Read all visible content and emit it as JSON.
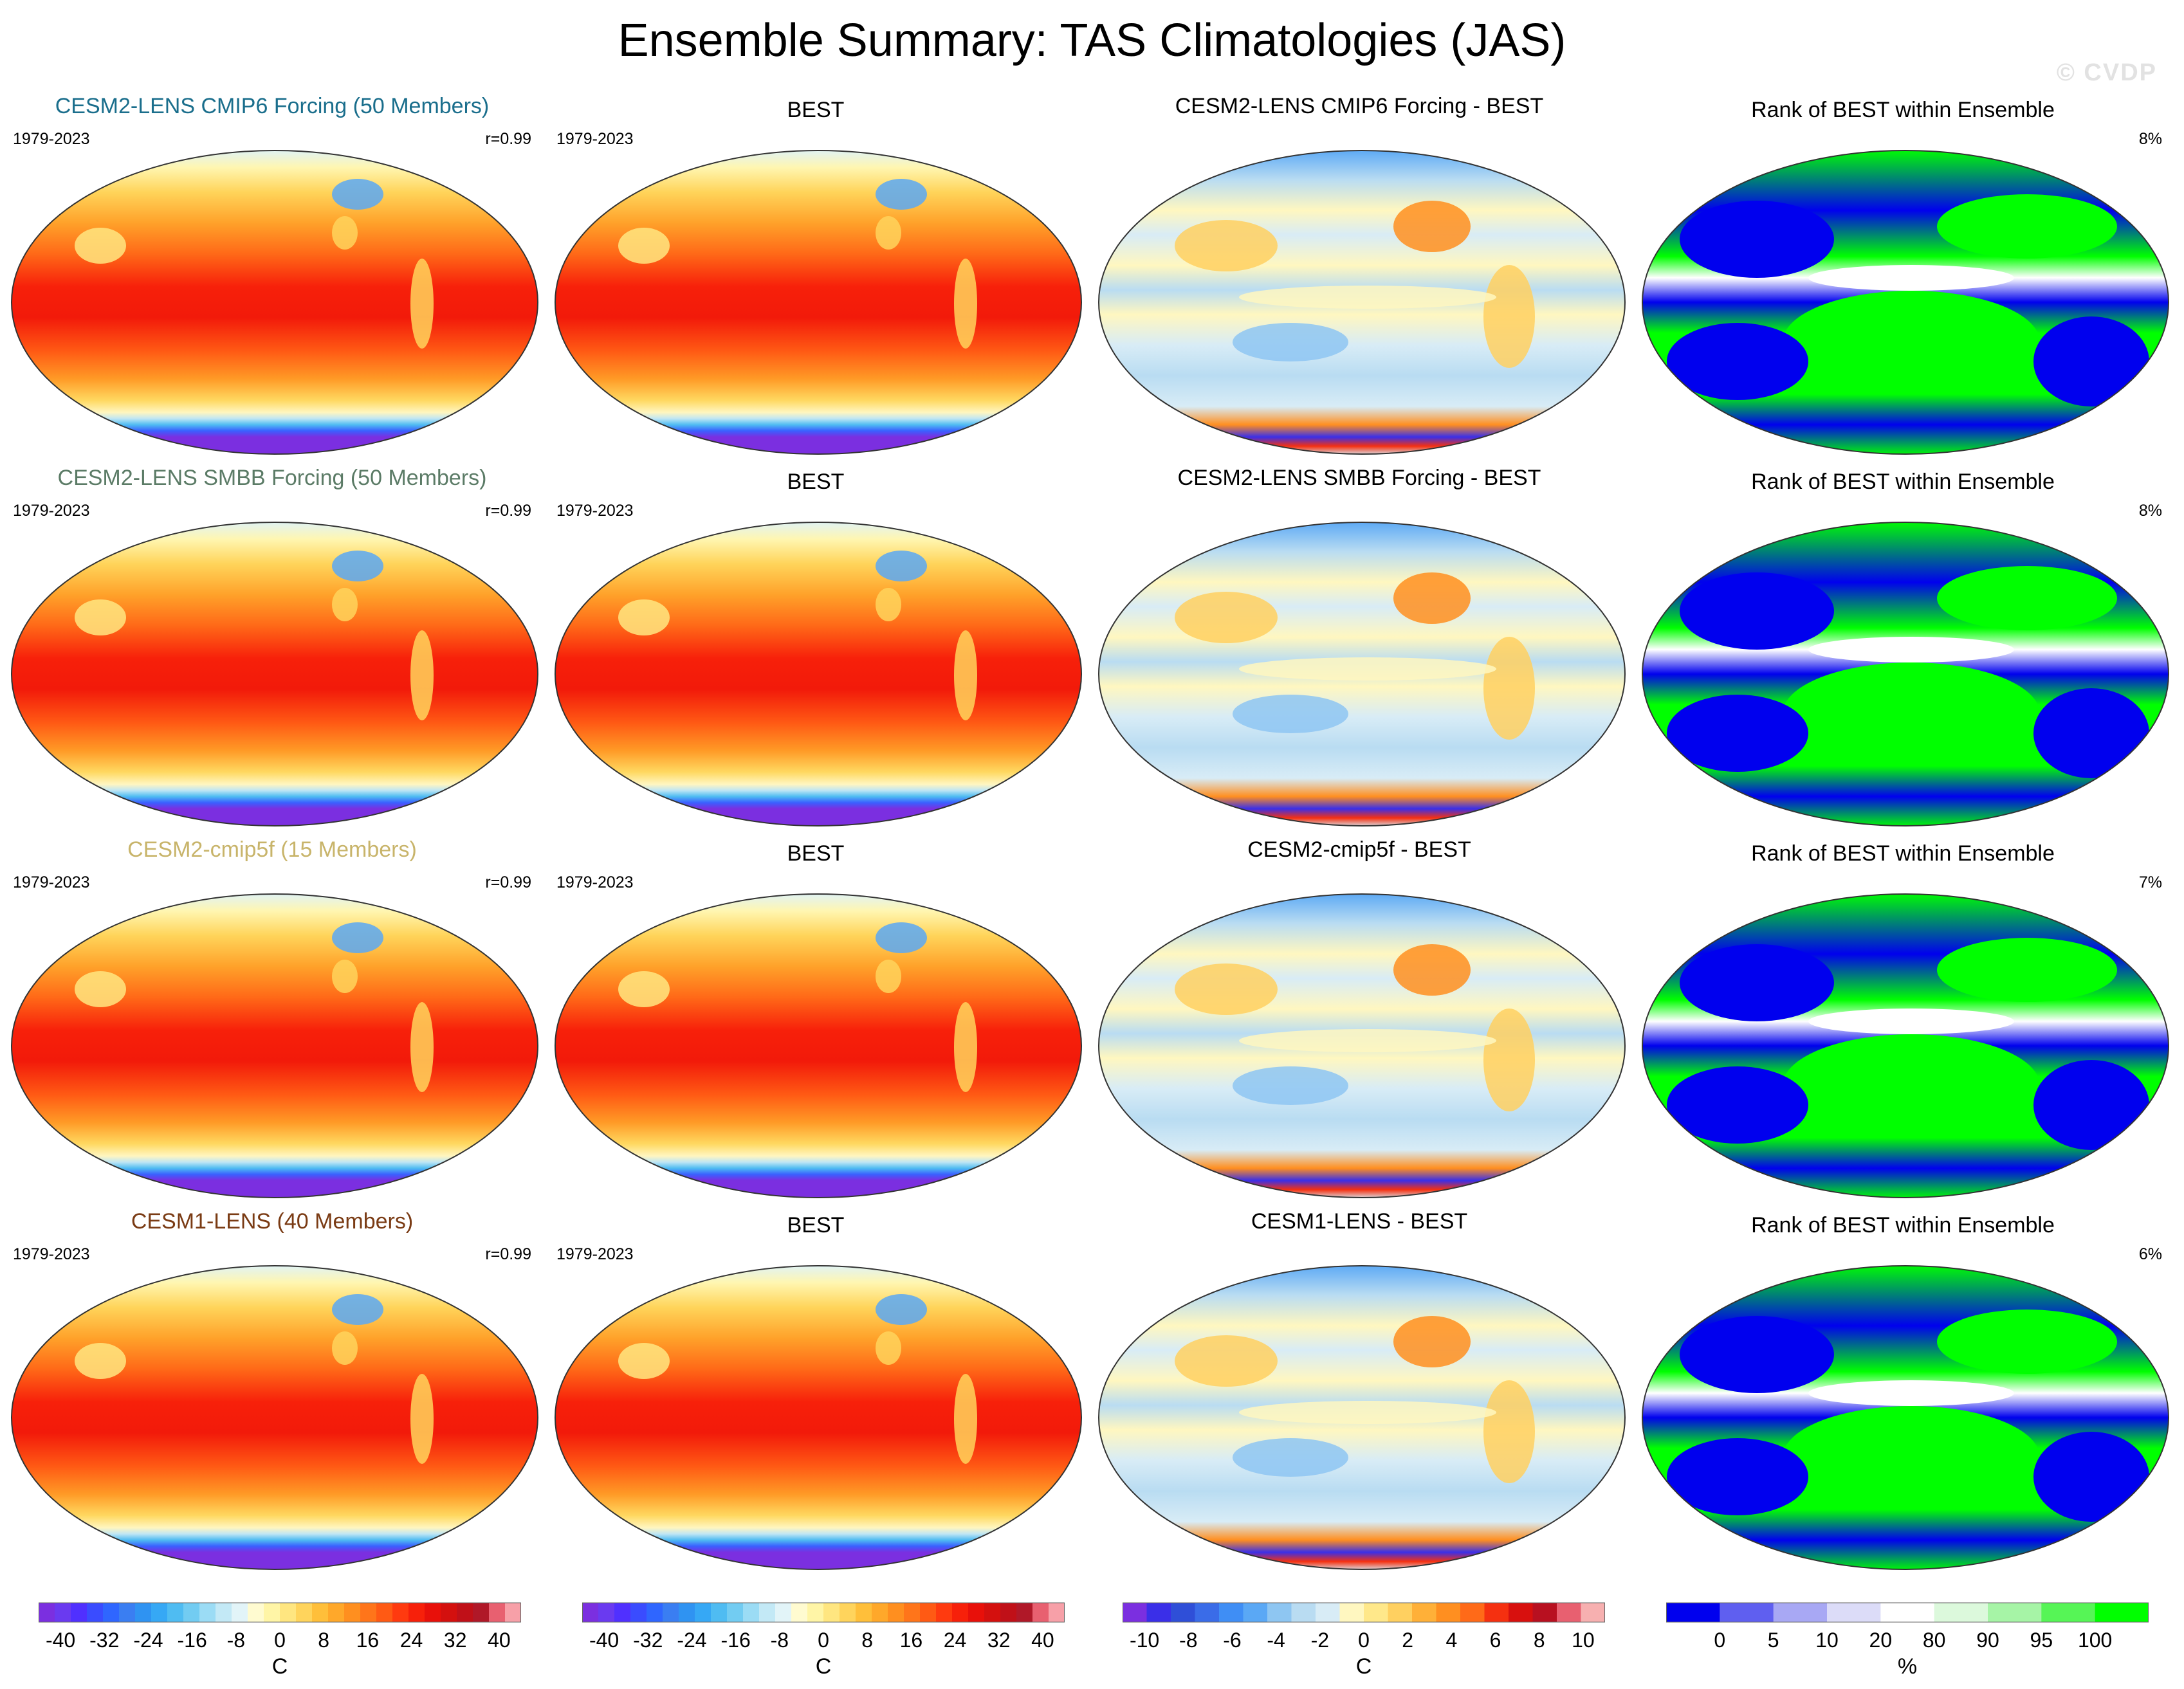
{
  "title": "Ensemble Summary: TAS Climatologies (JAS)",
  "watermark": "© CVDP",
  "colors": {
    "row_title_1": "#1a6e8c",
    "row_title_2": "#5b7b66",
    "row_title_3": "#c8b46a",
    "row_title_4": "#7a3b14",
    "rank_low": "#0000ee",
    "rank_high": "#00ff00",
    "rank_mid": "#ffffff"
  },
  "rows": [
    {
      "ensemble": {
        "title": "CESM2-LENS CMIP6 Forcing (50 Members)",
        "years": "1979-2023",
        "corr": "r=0.99"
      },
      "obs": {
        "title": "BEST",
        "years": "1979-2023"
      },
      "diff": {
        "title": "CESM2-LENS CMIP6 Forcing - BEST"
      },
      "rank": {
        "title": "Rank of BEST within Ensemble",
        "pct": "8%"
      }
    },
    {
      "ensemble": {
        "title": "CESM2-LENS SMBB Forcing (50 Members)",
        "years": "1979-2023",
        "corr": "r=0.99"
      },
      "obs": {
        "title": "BEST",
        "years": "1979-2023"
      },
      "diff": {
        "title": "CESM2-LENS SMBB Forcing - BEST"
      },
      "rank": {
        "title": "Rank of BEST within Ensemble",
        "pct": "8%"
      }
    },
    {
      "ensemble": {
        "title": "CESM2-cmip5f (15 Members)",
        "years": "1979-2023",
        "corr": "r=0.99"
      },
      "obs": {
        "title": "BEST",
        "years": "1979-2023"
      },
      "diff": {
        "title": "CESM2-cmip5f - BEST"
      },
      "rank": {
        "title": "Rank of BEST within Ensemble",
        "pct": "7%"
      }
    },
    {
      "ensemble": {
        "title": "CESM1-LENS (40 Members)",
        "years": "1979-2023",
        "corr": "r=0.99"
      },
      "obs": {
        "title": "BEST",
        "years": "1979-2023"
      },
      "diff": {
        "title": "CESM1-LENS - BEST"
      },
      "rank": {
        "title": "Rank of BEST within Ensemble",
        "pct": "6%"
      }
    }
  ],
  "colorbars": [
    {
      "labels": [
        "-40",
        "-32",
        "-24",
        "-16",
        "-8",
        "0",
        "8",
        "16",
        "24",
        "32",
        "40"
      ],
      "unit": "C",
      "colors": [
        "#7b2fe0",
        "#6a3af0",
        "#5030ff",
        "#3a4cff",
        "#2f66ff",
        "#3a7ef2",
        "#2f93f2",
        "#36a8f5",
        "#4fbcf2",
        "#72ccf2",
        "#9bdcf5",
        "#c3e9f6",
        "#e2f4f8",
        "#fffbd0",
        "#fff5a6",
        "#ffe680",
        "#ffd45c",
        "#ffbf3a",
        "#ffa82a",
        "#ff8f1f",
        "#ff751a",
        "#ff5a14",
        "#ff3a0f",
        "#f7200a",
        "#e8100a",
        "#d4100e",
        "#c01018",
        "#b01828",
        "#e86070",
        "#f7a0a8"
      ]
    },
    {
      "labels": [
        "-40",
        "-32",
        "-24",
        "-16",
        "-8",
        "0",
        "8",
        "16",
        "24",
        "32",
        "40"
      ],
      "unit": "C",
      "colors": [
        "#7b2fe0",
        "#6a3af0",
        "#5030ff",
        "#3a4cff",
        "#2f66ff",
        "#3a7ef2",
        "#2f93f2",
        "#36a8f5",
        "#4fbcf2",
        "#72ccf2",
        "#9bdcf5",
        "#c3e9f6",
        "#e2f4f8",
        "#fffbd0",
        "#fff5a6",
        "#ffe680",
        "#ffd45c",
        "#ffbf3a",
        "#ffa82a",
        "#ff8f1f",
        "#ff751a",
        "#ff5a14",
        "#ff3a0f",
        "#f7200a",
        "#e8100a",
        "#d4100e",
        "#c01018",
        "#b01828",
        "#e86070",
        "#f7a0a8"
      ]
    },
    {
      "labels": [
        "-10",
        "-8",
        "-6",
        "-4",
        "-2",
        "0",
        "2",
        "4",
        "6",
        "8",
        "10"
      ],
      "unit": "C",
      "colors": [
        "#7b2fe0",
        "#3a2fe8",
        "#2f4fd8",
        "#3a6ce8",
        "#3f8ef5",
        "#5aa8f5",
        "#8ec6f2",
        "#b9dcf2",
        "#d8ecf6",
        "#fff7c0",
        "#ffe88a",
        "#ffd060",
        "#ffb038",
        "#ff8f20",
        "#ff6a18",
        "#f53010",
        "#d8100e",
        "#b81020",
        "#e86070",
        "#f7b0b0"
      ]
    },
    {
      "labels": [
        "0",
        "5",
        "10",
        "20",
        "80",
        "90",
        "95",
        "100"
      ],
      "unit": "%",
      "colors": [
        "#0000ee",
        "#5f5ff0",
        "#a8a8f4",
        "#dcdcf8",
        "#ffffff",
        "#dcf9dc",
        "#a6f4a6",
        "#56f556",
        "#00ff00"
      ]
    }
  ]
}
